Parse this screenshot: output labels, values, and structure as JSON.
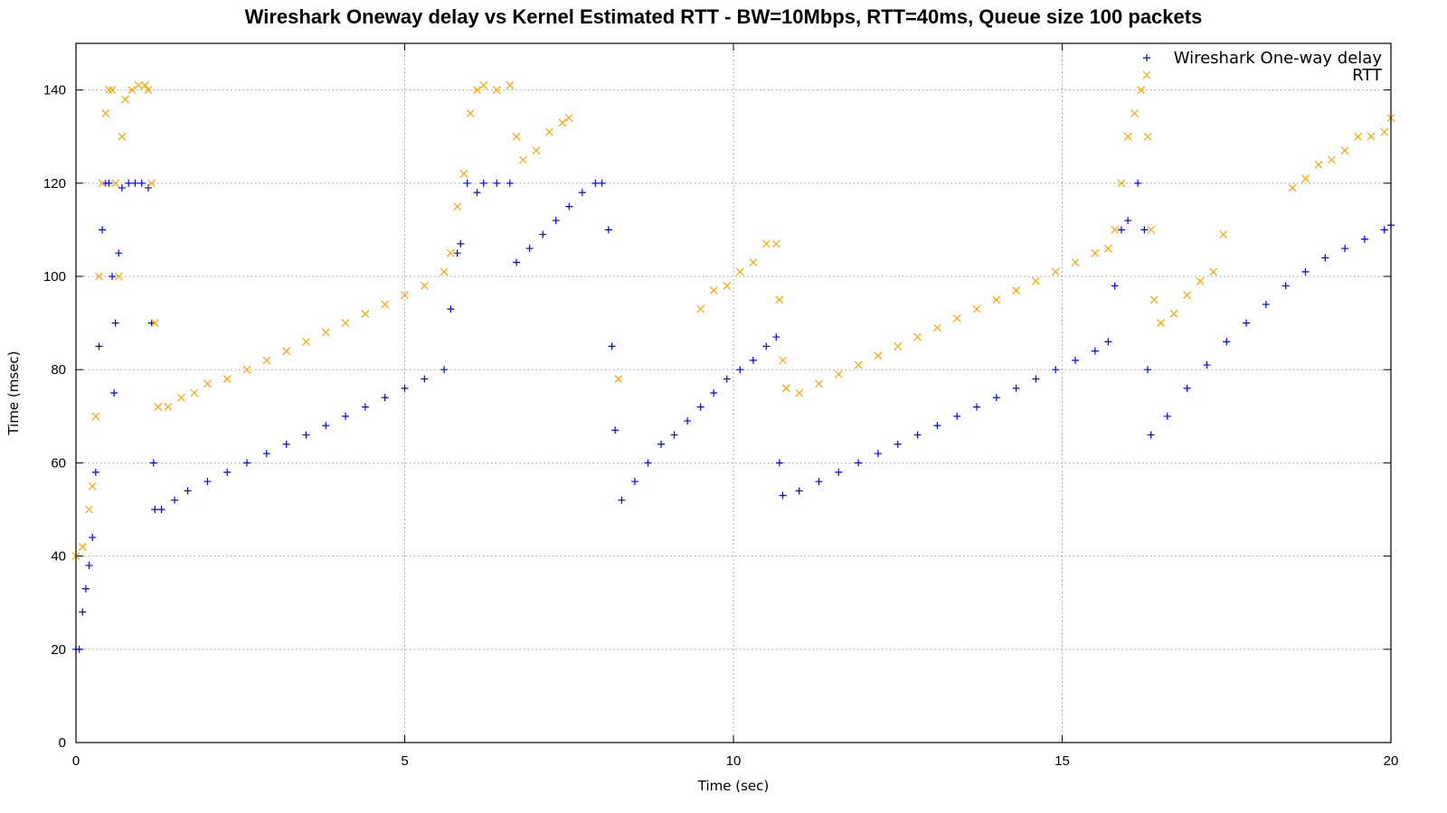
{
  "chart_data": {
    "type": "scatter",
    "title": "Wireshark Oneway delay vs Kernel Estimated RTT - BW=10Mbps, RTT=40ms, Queue size 100 packets",
    "xlabel": "Time (sec)",
    "ylabel": "Time (msec)",
    "xlim": [
      0,
      20
    ],
    "ylim": [
      0,
      150
    ],
    "xticks": [
      0,
      5,
      10,
      15,
      20
    ],
    "yticks": [
      0,
      20,
      40,
      60,
      80,
      100,
      120,
      140
    ],
    "grid": true,
    "legend_position": "top-right",
    "series": [
      {
        "name": "Wireshark One-way delay",
        "marker": "plus",
        "color": "#0000ff",
        "points": [
          [
            0.0,
            20
          ],
          [
            0.05,
            20
          ],
          [
            0.1,
            28
          ],
          [
            0.15,
            33
          ],
          [
            0.2,
            38
          ],
          [
            0.25,
            44
          ],
          [
            0.3,
            58
          ],
          [
            0.35,
            85
          ],
          [
            0.4,
            110
          ],
          [
            0.45,
            120
          ],
          [
            0.5,
            120
          ],
          [
            0.55,
            100
          ],
          [
            0.58,
            75
          ],
          [
            0.6,
            90
          ],
          [
            0.65,
            105
          ],
          [
            0.7,
            119
          ],
          [
            0.8,
            120
          ],
          [
            0.9,
            120
          ],
          [
            1.0,
            120
          ],
          [
            1.1,
            119
          ],
          [
            1.15,
            90
          ],
          [
            1.18,
            60
          ],
          [
            1.2,
            50
          ],
          [
            1.3,
            50
          ],
          [
            1.5,
            52
          ],
          [
            1.7,
            54
          ],
          [
            2.0,
            56
          ],
          [
            2.3,
            58
          ],
          [
            2.6,
            60
          ],
          [
            2.9,
            62
          ],
          [
            3.2,
            64
          ],
          [
            3.5,
            66
          ],
          [
            3.8,
            68
          ],
          [
            4.1,
            70
          ],
          [
            4.4,
            72
          ],
          [
            4.7,
            74
          ],
          [
            5.0,
            76
          ],
          [
            5.3,
            78
          ],
          [
            5.6,
            80
          ],
          [
            5.7,
            93
          ],
          [
            5.8,
            105
          ],
          [
            5.85,
            107
          ],
          [
            5.95,
            120
          ],
          [
            6.1,
            118
          ],
          [
            6.2,
            120
          ],
          [
            6.4,
            120
          ],
          [
            6.6,
            120
          ],
          [
            6.7,
            103
          ],
          [
            6.9,
            106
          ],
          [
            7.1,
            109
          ],
          [
            7.3,
            112
          ],
          [
            7.5,
            115
          ],
          [
            7.7,
            118
          ],
          [
            7.9,
            120
          ],
          [
            8.0,
            120
          ],
          [
            8.1,
            110
          ],
          [
            8.15,
            85
          ],
          [
            8.2,
            67
          ],
          [
            8.3,
            52
          ],
          [
            8.5,
            56
          ],
          [
            8.7,
            60
          ],
          [
            8.9,
            64
          ],
          [
            9.1,
            66
          ],
          [
            9.3,
            69
          ],
          [
            9.5,
            72
          ],
          [
            9.7,
            75
          ],
          [
            9.9,
            78
          ],
          [
            10.1,
            80
          ],
          [
            10.3,
            82
          ],
          [
            10.5,
            85
          ],
          [
            10.65,
            87
          ],
          [
            10.7,
            60
          ],
          [
            10.75,
            53
          ],
          [
            11.0,
            54
          ],
          [
            11.3,
            56
          ],
          [
            11.6,
            58
          ],
          [
            11.9,
            60
          ],
          [
            12.2,
            62
          ],
          [
            12.5,
            64
          ],
          [
            12.8,
            66
          ],
          [
            13.1,
            68
          ],
          [
            13.4,
            70
          ],
          [
            13.7,
            72
          ],
          [
            14.0,
            74
          ],
          [
            14.3,
            76
          ],
          [
            14.6,
            78
          ],
          [
            14.9,
            80
          ],
          [
            15.2,
            82
          ],
          [
            15.5,
            84
          ],
          [
            15.7,
            86
          ],
          [
            15.8,
            98
          ],
          [
            15.9,
            110
          ],
          [
            16.0,
            112
          ],
          [
            16.15,
            120
          ],
          [
            16.25,
            110
          ],
          [
            16.3,
            80
          ],
          [
            16.35,
            66
          ],
          [
            16.6,
            70
          ],
          [
            16.9,
            76
          ],
          [
            17.2,
            81
          ],
          [
            17.5,
            86
          ],
          [
            17.8,
            90
          ],
          [
            18.1,
            94
          ],
          [
            18.4,
            98
          ],
          [
            18.7,
            101
          ],
          [
            19.0,
            104
          ],
          [
            19.3,
            106
          ],
          [
            19.6,
            108
          ],
          [
            19.9,
            110
          ],
          [
            20.0,
            111
          ]
        ]
      },
      {
        "name": "RTT",
        "marker": "cross",
        "color": "#ffa500",
        "points": [
          [
            0.0,
            40
          ],
          [
            0.1,
            42
          ],
          [
            0.2,
            50
          ],
          [
            0.25,
            55
          ],
          [
            0.3,
            70
          ],
          [
            0.35,
            100
          ],
          [
            0.4,
            120
          ],
          [
            0.45,
            135
          ],
          [
            0.5,
            140
          ],
          [
            0.55,
            140
          ],
          [
            0.6,
            120
          ],
          [
            0.65,
            100
          ],
          [
            0.7,
            130
          ],
          [
            0.75,
            138
          ],
          [
            0.85,
            140
          ],
          [
            0.95,
            141
          ],
          [
            1.05,
            141
          ],
          [
            1.1,
            140
          ],
          [
            1.15,
            120
          ],
          [
            1.2,
            90
          ],
          [
            1.25,
            72
          ],
          [
            1.4,
            72
          ],
          [
            1.6,
            74
          ],
          [
            1.8,
            75
          ],
          [
            2.0,
            77
          ],
          [
            2.3,
            78
          ],
          [
            2.6,
            80
          ],
          [
            2.9,
            82
          ],
          [
            3.2,
            84
          ],
          [
            3.5,
            86
          ],
          [
            3.8,
            88
          ],
          [
            4.1,
            90
          ],
          [
            4.4,
            92
          ],
          [
            4.7,
            94
          ],
          [
            5.0,
            96
          ],
          [
            5.3,
            98
          ],
          [
            5.6,
            101
          ],
          [
            5.7,
            105
          ],
          [
            5.8,
            115
          ],
          [
            5.9,
            122
          ],
          [
            6.0,
            135
          ],
          [
            6.1,
            140
          ],
          [
            6.2,
            141
          ],
          [
            6.4,
            140
          ],
          [
            6.6,
            141
          ],
          [
            6.7,
            130
          ],
          [
            6.8,
            125
          ],
          [
            7.0,
            127
          ],
          [
            7.2,
            131
          ],
          [
            7.4,
            133
          ],
          [
            7.5,
            134
          ],
          [
            8.25,
            78
          ],
          [
            9.5,
            93
          ],
          [
            9.7,
            97
          ],
          [
            9.9,
            98
          ],
          [
            10.1,
            101
          ],
          [
            10.3,
            103
          ],
          [
            10.5,
            107
          ],
          [
            10.65,
            107
          ],
          [
            10.7,
            95
          ],
          [
            10.75,
            82
          ],
          [
            10.8,
            76
          ],
          [
            11.0,
            75
          ],
          [
            11.3,
            77
          ],
          [
            11.6,
            79
          ],
          [
            11.9,
            81
          ],
          [
            12.2,
            83
          ],
          [
            12.5,
            85
          ],
          [
            12.8,
            87
          ],
          [
            13.1,
            89
          ],
          [
            13.4,
            91
          ],
          [
            13.7,
            93
          ],
          [
            14.0,
            95
          ],
          [
            14.3,
            97
          ],
          [
            14.6,
            99
          ],
          [
            14.9,
            101
          ],
          [
            15.2,
            103
          ],
          [
            15.5,
            105
          ],
          [
            15.7,
            106
          ],
          [
            15.8,
            110
          ],
          [
            15.9,
            120
          ],
          [
            16.0,
            130
          ],
          [
            16.1,
            135
          ],
          [
            16.2,
            140
          ],
          [
            16.3,
            130
          ],
          [
            16.35,
            110
          ],
          [
            16.4,
            95
          ],
          [
            16.5,
            90
          ],
          [
            16.7,
            92
          ],
          [
            16.9,
            96
          ],
          [
            17.1,
            99
          ],
          [
            17.3,
            101
          ],
          [
            17.45,
            109
          ],
          [
            18.5,
            119
          ],
          [
            18.7,
            121
          ],
          [
            18.9,
            124
          ],
          [
            19.1,
            125
          ],
          [
            19.3,
            127
          ],
          [
            19.5,
            130
          ],
          [
            19.7,
            130
          ],
          [
            19.9,
            131
          ],
          [
            20.0,
            134
          ]
        ]
      }
    ]
  }
}
